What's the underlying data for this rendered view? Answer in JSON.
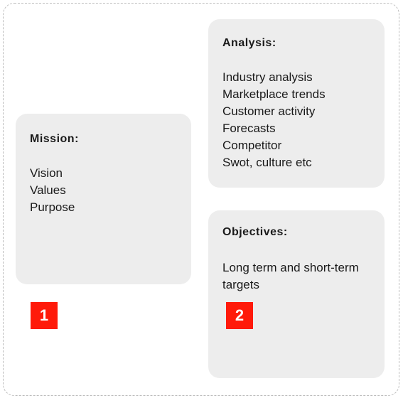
{
  "mission": {
    "heading": "Mission:",
    "items": [
      "Vision",
      "Values",
      "Purpose"
    ]
  },
  "analysis": {
    "heading": "Analysis:",
    "items": [
      "Industry analysis",
      "Marketplace trends",
      "Customer activity",
      "Forecasts",
      "Competitor",
      "Swot, culture etc"
    ]
  },
  "objectives": {
    "heading": "Objectives:",
    "text": "Long term and short-term targets"
  },
  "badges": [
    "1",
    "2"
  ],
  "colors": {
    "card_background": "#ededed",
    "badge_background": "#ff1a0a",
    "badge_text": "#ffffff",
    "frame_border": "#bdbdbd"
  }
}
